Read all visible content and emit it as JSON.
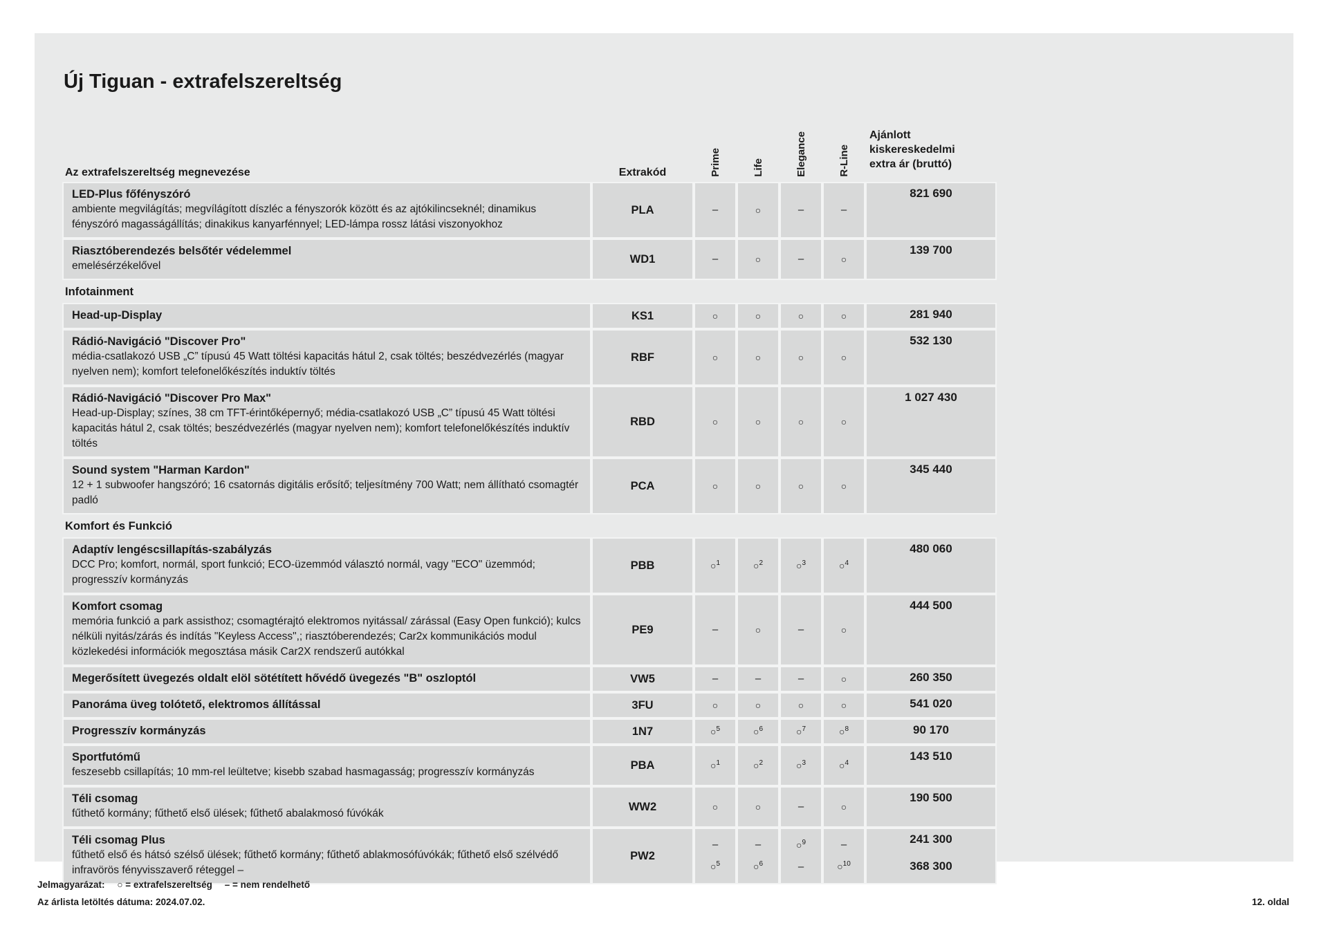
{
  "page": {
    "title": "Új Tiguan - extrafelszereltség",
    "footer": {
      "legend_label": "Jelmagyarázat:",
      "legend_circle": "○ = extrafelszereltség",
      "legend_dash": "– = nem rendelhető",
      "date_line": "Az árlista letöltés dátuma: 2024.07.02.",
      "page_number": "12. oldal"
    }
  },
  "colors": {
    "card_bg": "#e9eaea",
    "cell_bg": "#d8d9d9",
    "text": "#1a1a1a"
  },
  "table": {
    "headers": {
      "name": "Az extrafelszereltség megnevezése",
      "code": "Extrakód",
      "trims": [
        "Prime",
        "Life",
        "Elegance",
        "R-Line"
      ],
      "price_line1": "Ajánlott kiskereskedelmi",
      "price_line2": "extra ár (bruttó)"
    },
    "symbols": {
      "available": "○",
      "not_orderable": "–"
    },
    "rows": [
      {
        "type": "item",
        "name": "LED-Plus főfényszóró",
        "desc": "ambiente megvilágítás; megvílágított díszléc a fényszorók között és az ajtókilincseknél; dinamikus fényszóró magasságállítás; dinakikus kanyarfénnyel; LED-lámpa rossz látási viszonyokhoz",
        "code": "PLA",
        "marks": [
          [
            "–",
            "○",
            "–",
            "–"
          ]
        ],
        "prices": [
          "821 690"
        ]
      },
      {
        "type": "item",
        "name": "Riasztóberendezés belsőtér védelemmel",
        "desc": "emelésérzékelővel",
        "code": "WD1",
        "marks": [
          [
            "–",
            "○",
            "–",
            "○"
          ]
        ],
        "prices": [
          "139 700"
        ]
      },
      {
        "type": "section",
        "label": "Infotainment"
      },
      {
        "type": "item",
        "name": "Head-up-Display",
        "code": "KS1",
        "marks": [
          [
            "○",
            "○",
            "○",
            "○"
          ]
        ],
        "prices": [
          "281 940"
        ]
      },
      {
        "type": "item",
        "name": "Rádió-Navigáció \"Discover Pro\"",
        "desc": "média-csatlakozó USB „C” típusú 45 Watt töltési kapacitás hátul 2, csak töltés; beszédvezérlés (magyar nyelven nem); komfort telefonelőkészítés induktív töltés",
        "code": "RBF",
        "marks": [
          [
            "○",
            "○",
            "○",
            "○"
          ]
        ],
        "prices": [
          "532 130"
        ]
      },
      {
        "type": "item",
        "name": "Rádió-Navigáció \"Discover Pro Max\"",
        "desc": "Head-up-Display; színes, 38 cm TFT-érintőképernyő; média-csatlakozó USB „C” típusú 45 Watt töltési kapacitás hátul 2, csak töltés; beszédvezérlés (magyar nyelven nem); komfort telefonelőkészítés induktív töltés",
        "code": "RBD",
        "marks": [
          [
            "○",
            "○",
            "○",
            "○"
          ]
        ],
        "prices": [
          "1 027 430"
        ]
      },
      {
        "type": "item",
        "name": "Sound system \"Harman Kardon\"",
        "desc": "12 + 1 subwoofer hangszóró; 16 csatornás digitális erősítő; teljesítmény 700 Watt; nem állítható csomagtér padló",
        "code": "PCA",
        "marks": [
          [
            "○",
            "○",
            "○",
            "○"
          ]
        ],
        "prices": [
          "345 440"
        ]
      },
      {
        "type": "section",
        "label": "Komfort és Funkció"
      },
      {
        "type": "item",
        "name": "Adaptív lengéscsillapítás-szabályzás",
        "desc": "DCC Pro; komfort, normál, sport funkció; ECO-üzemmód választó normál, vagy \"ECO\" üzemmód; progresszív kormányzás",
        "code": "PBB",
        "marks": [
          [
            "○1",
            "○2",
            "○3",
            "○4"
          ]
        ],
        "prices": [
          "480 060"
        ]
      },
      {
        "type": "item",
        "name": "Komfort csomag",
        "desc": "memória funkció a park assisthoz; csomagtérajtó elektromos nyitással/ zárással (Easy Open funkció); kulcs nélküli nyitás/zárás és indítás \"Keyless Access\",; riasztóberendezés; Car2x kommunikációs modul közlekedési információk megosztása másik Car2X rendszerű autókkal",
        "code": "PE9",
        "marks": [
          [
            "–",
            "○",
            "–",
            "○"
          ]
        ],
        "prices": [
          "444 500"
        ]
      },
      {
        "type": "item",
        "name": "Megerősített üvegezés oldalt elöl sötétített hővédő üvegezés \"B\" oszloptól",
        "code": "VW5",
        "marks": [
          [
            "–",
            "–",
            "–",
            "○"
          ]
        ],
        "prices": [
          "260 350"
        ]
      },
      {
        "type": "item",
        "name": "Panoráma üveg tolótető, elektromos állítással",
        "code": "3FU",
        "marks": [
          [
            "○",
            "○",
            "○",
            "○"
          ]
        ],
        "prices": [
          "541 020"
        ]
      },
      {
        "type": "item",
        "name": "Progresszív kormányzás",
        "code": "1N7",
        "marks": [
          [
            "○5",
            "○6",
            "○7",
            "○8"
          ]
        ],
        "prices": [
          "90 170"
        ]
      },
      {
        "type": "item",
        "name": "Sportfutómű",
        "desc": "feszesebb csillapítás; 10 mm-rel leültetve; kisebb szabad hasmagasság; progresszív kormányzás",
        "code": "PBA",
        "marks": [
          [
            "○1",
            "○2",
            "○3",
            "○4"
          ]
        ],
        "prices": [
          "143 510"
        ]
      },
      {
        "type": "item",
        "name": "Téli csomag",
        "desc": "fűthető kormány; fűthető első ülések; fűthető abalakmosó fúvókák",
        "code": "WW2",
        "marks": [
          [
            "○",
            "○",
            "–",
            "○"
          ]
        ],
        "prices": [
          "190 500"
        ]
      },
      {
        "type": "item",
        "name": "Téli csomag Plus",
        "desc": "fűthető első és hátsó szélső ülések; fűthető kormány; fűthető ablakmosófúvókák; fűthető első szélvédő infravörös fényvisszaverő réteggel –",
        "code": "PW2",
        "marks": [
          [
            "–",
            "–",
            "○9",
            "–"
          ],
          [
            "○5",
            "○6",
            "–",
            "○10"
          ]
        ],
        "prices": [
          "241 300",
          "368 300"
        ]
      }
    ]
  }
}
